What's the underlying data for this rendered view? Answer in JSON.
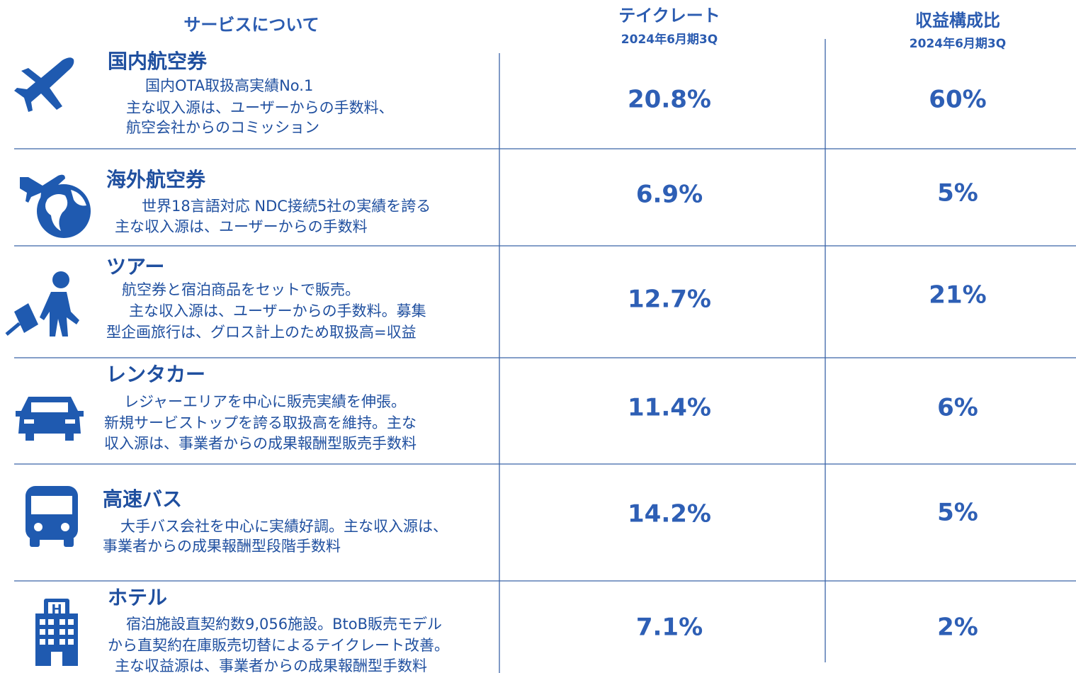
{
  "header": {
    "service": "サービスについて",
    "take_rate": {
      "title": "テイクレート",
      "period": "2024年6月期3Q"
    },
    "revenue_share": {
      "title": "収益構成比",
      "period": "2024年6月期3Q"
    }
  },
  "rows": [
    {
      "name": "国内航空券",
      "description": [
        "国内OTA取扱高実績No.1",
        "主な収入源は、ユーザーからの手数料、",
        "航空会社からのコミッション"
      ],
      "take_rate": "20.8%",
      "revenue_share": "60%"
    },
    {
      "name": "海外航空券",
      "description": [
        "世界18言語対応 NDC接続5社の実績を誇る",
        "主な収入源は、ユーザーからの手数料"
      ],
      "take_rate": "6.9%",
      "revenue_share": "5%"
    },
    {
      "name": "ツアー",
      "description": [
        "航空券と宿泊商品をセットで販売。",
        "主な収入源は、ユーザーからの手数料。募集",
        "型企画旅行は、グロス計上のため取扱高=収益"
      ],
      "take_rate": "12.7%",
      "revenue_share": "21%"
    },
    {
      "name": "レンタカー",
      "description": [
        "レジャーエリアを中心に販売実績を伸張。",
        "新規サービストップを誇る取扱高を維持。主な",
        "収入源は、事業者からの成果報酬型販売手数料"
      ],
      "take_rate": "11.4%",
      "revenue_share": "6%"
    },
    {
      "name": "高速バス",
      "description": [
        "大手バス会社を中心に実績好調。主な収入源は、",
        "事業者からの成果報酬型段階手数料"
      ],
      "take_rate": "14.2%",
      "revenue_share": "5%"
    },
    {
      "name": "ホテル",
      "description": [
        "宿泊施設直契約数9,056施設。BtoB販売モデル",
        "から直契約在庫販売切替によるテイクレート改善。",
        "主な収益源は、事業者からの成果報酬型手数料"
      ],
      "take_rate": "7.1%",
      "revenue_share": "2%"
    }
  ]
}
